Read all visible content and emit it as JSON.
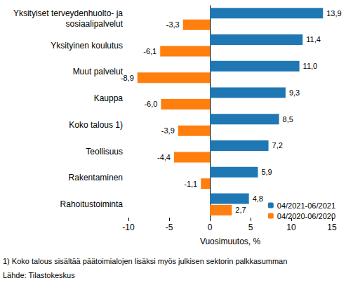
{
  "chart_data": {
    "type": "bar",
    "orientation": "horizontal",
    "categories": [
      "Yksityiset terveydenhuolto- ja\nsosiaalipalvelut",
      "Yksityinen koulutus",
      "Muut palvelut",
      "Kauppa",
      "Koko talous 1)",
      "Teollisuus",
      "Rakentaminen",
      "Rahoitustoiminta"
    ],
    "series": [
      {
        "name": "04/2021-06/2021",
        "color": "#1f77b4",
        "values": [
          13.9,
          11.4,
          11.0,
          9.3,
          8.5,
          7.2,
          5.9,
          4.8
        ],
        "value_labels": [
          "13,9",
          "11,4",
          "11,0",
          "9,3",
          "8,5",
          "7,2",
          "5,9",
          "4,8"
        ]
      },
      {
        "name": "04/2020-06/2020",
        "color": "#ff7f0e",
        "values": [
          -3.3,
          -6.1,
          -8.9,
          -6.0,
          -3.9,
          -4.4,
          -1.1,
          2.7
        ],
        "value_labels": [
          "-3,3",
          "-6,1",
          "-8,9",
          "-6,0",
          "-3,9",
          "-4,4",
          "-1,1",
          "2,7"
        ]
      }
    ],
    "x_label": "Vuosimuutos, %",
    "xlim": [
      -10,
      15
    ],
    "xticks": [
      -10,
      -5,
      0,
      5,
      10,
      15
    ],
    "grid": false,
    "legend": "bottom-right",
    "data_labels": true,
    "footnote": "1) Koko talous sisältää päätoimialojen lisäksi myös julkisen sektorin palkkasumman",
    "source": "Lähde: Tilastokeskus"
  }
}
